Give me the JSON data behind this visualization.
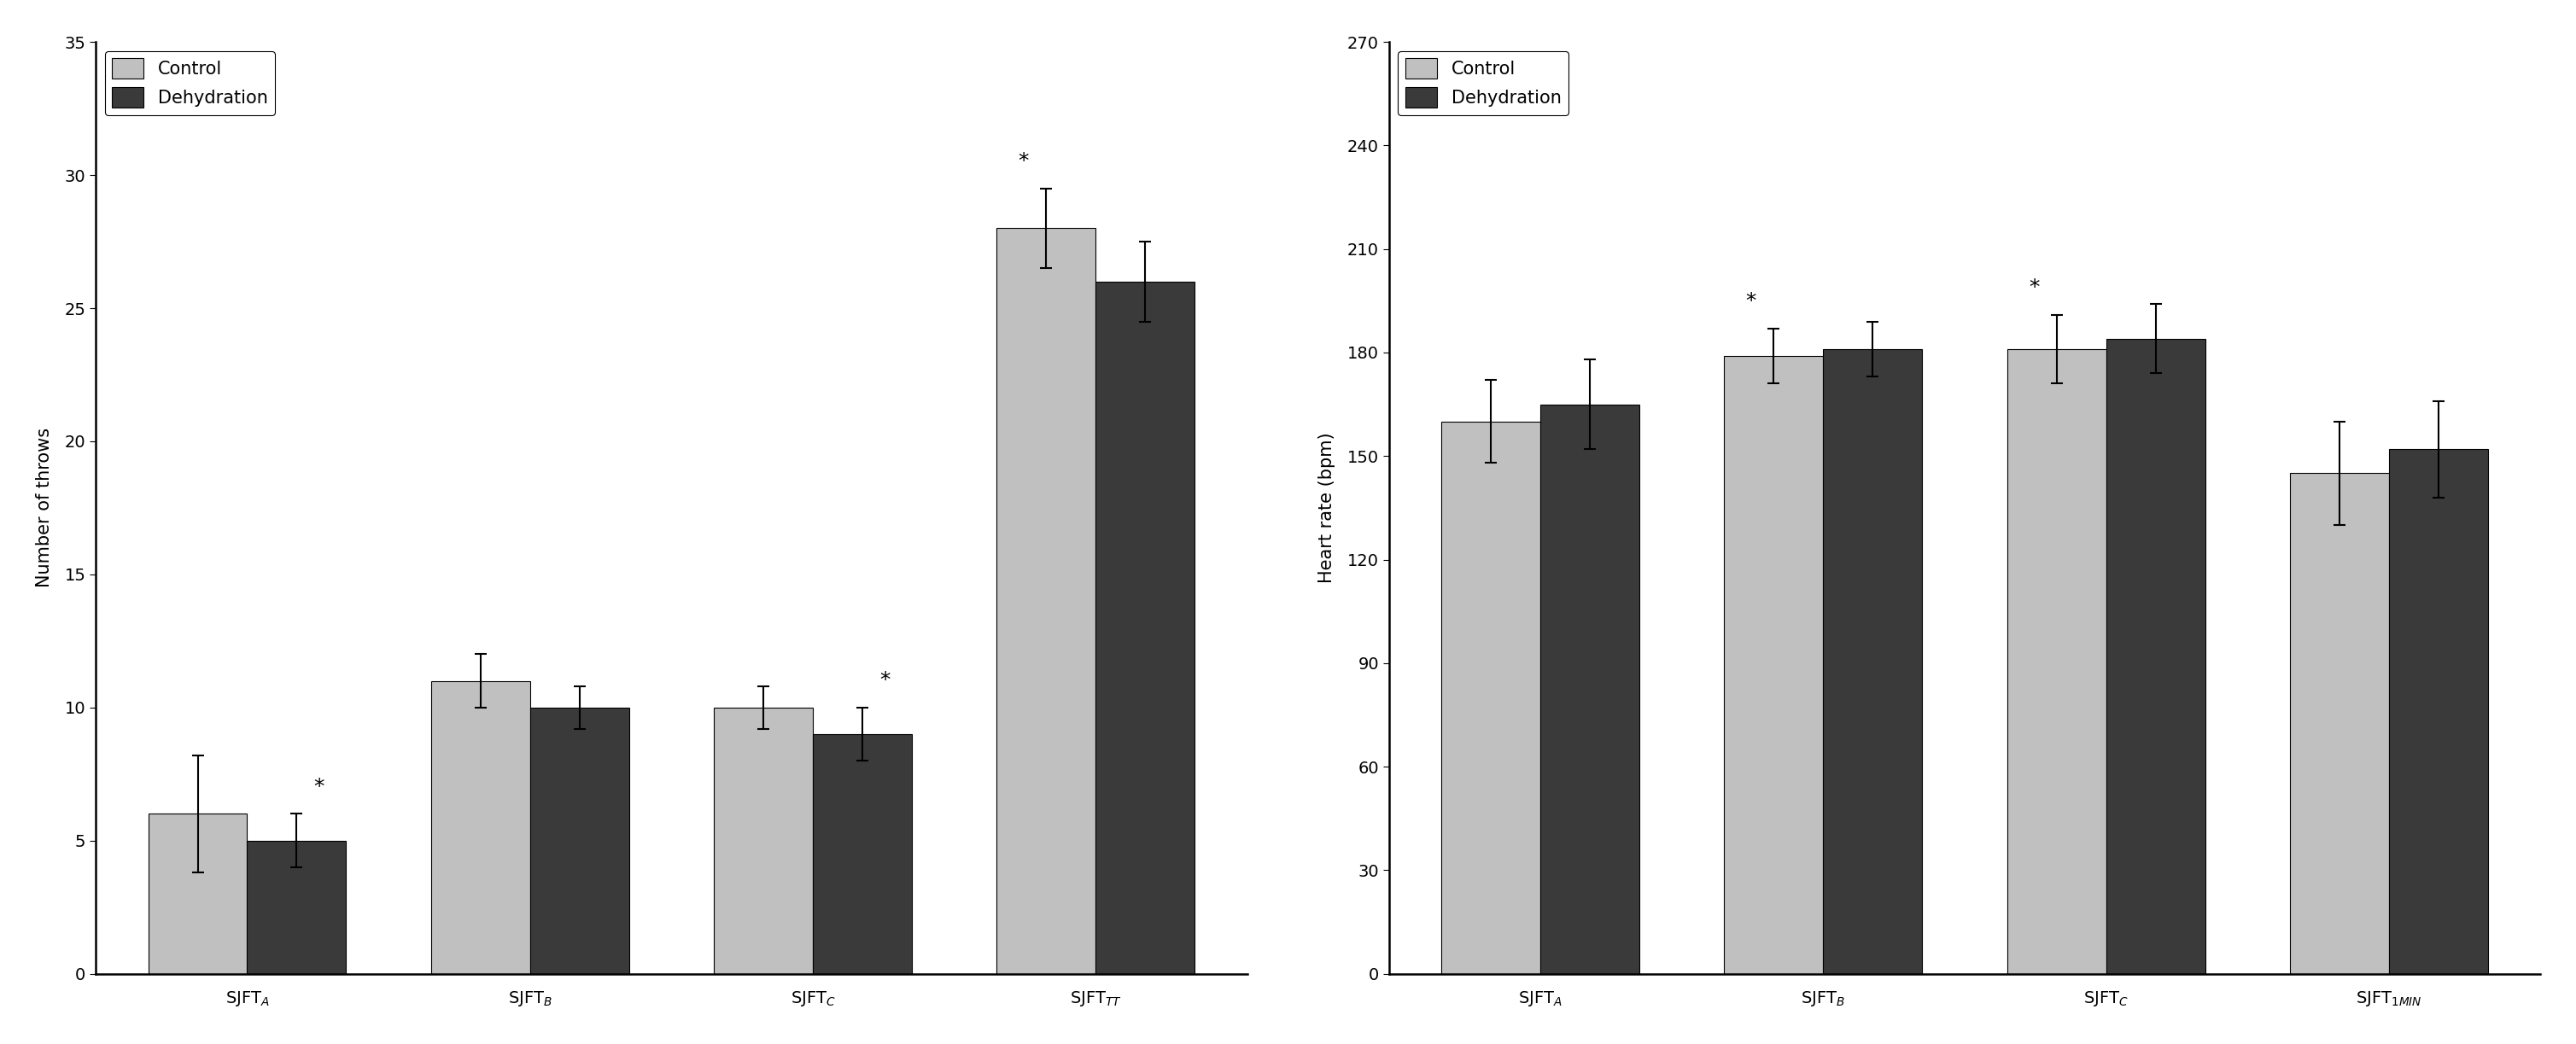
{
  "chart1": {
    "categories": [
      "SJFT$_A$",
      "SJFT$_B$",
      "SJFT$_C$",
      "SJFT$_{TT}$"
    ],
    "control_values": [
      6.0,
      11.0,
      10.0,
      28.0
    ],
    "dehydration_values": [
      5.0,
      10.0,
      9.0,
      26.0
    ],
    "control_errors": [
      2.2,
      1.0,
      0.8,
      1.5
    ],
    "dehydration_errors": [
      1.0,
      0.8,
      1.0,
      1.5
    ],
    "ylabel": "Number of throws",
    "ylim": [
      0,
      35
    ],
    "yticks": [
      0,
      5,
      10,
      15,
      20,
      25,
      30,
      35
    ],
    "significance": [
      true,
      false,
      true,
      true
    ],
    "star_on_dehy": [
      true,
      false,
      true,
      false
    ],
    "title": ""
  },
  "chart2": {
    "categories": [
      "SJFT$_A$",
      "SJFT$_B$",
      "SJFT$_C$",
      "SJFT$_{1MIN}$"
    ],
    "control_values": [
      160,
      179,
      181,
      145
    ],
    "dehydration_values": [
      165,
      181,
      184,
      152
    ],
    "control_errors": [
      12,
      8,
      10,
      15
    ],
    "dehydration_errors": [
      13,
      8,
      10,
      14
    ],
    "ylabel": "Heart rate (bpm)",
    "ylim": [
      0,
      270
    ],
    "yticks": [
      0,
      30,
      60,
      90,
      120,
      150,
      180,
      210,
      240,
      270
    ],
    "significance": [
      false,
      true,
      true,
      false
    ],
    "star_on_dehy": [
      false,
      false,
      false,
      false
    ],
    "title": ""
  },
  "control_color": "#c0c0c0",
  "dehydration_color": "#3a3a3a",
  "bar_width": 0.35,
  "legend_labels": [
    "Control",
    "Dehydration"
  ],
  "background_color": "#ffffff",
  "label_fontsize": 15,
  "tick_fontsize": 14,
  "star_fontsize": 18
}
